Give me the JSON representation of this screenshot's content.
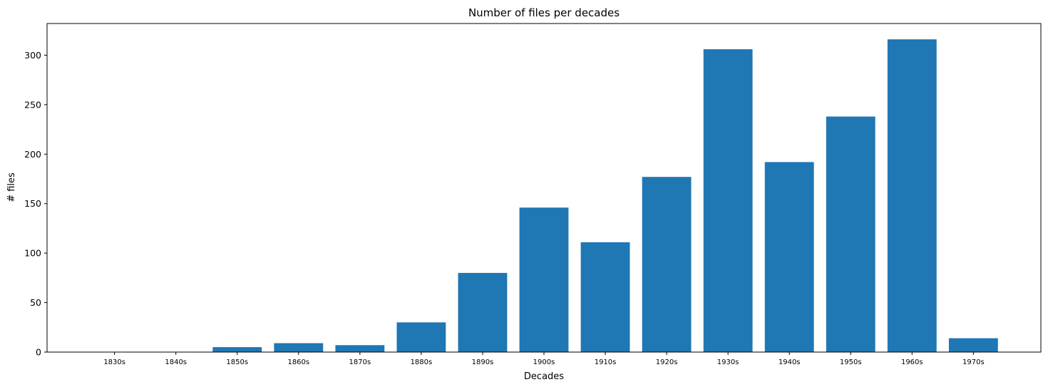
{
  "chart_data": {
    "type": "bar",
    "title": "Number of files per decades",
    "xlabel": "Decades",
    "ylabel": "# files",
    "categories": [
      "1830s",
      "1840s",
      "1850s",
      "1860s",
      "1870s",
      "1880s",
      "1890s",
      "1900s",
      "1910s",
      "1920s",
      "1930s",
      "1940s",
      "1950s",
      "1960s",
      "1970s"
    ],
    "values": [
      0,
      0,
      5,
      9,
      7,
      30,
      80,
      146,
      111,
      177,
      306,
      192,
      238,
      316,
      14
    ],
    "yticks": [
      0,
      50,
      100,
      150,
      200,
      250,
      300
    ],
    "ylim": [
      0,
      332
    ],
    "grid": false,
    "bar_color": "#1f77b4"
  }
}
